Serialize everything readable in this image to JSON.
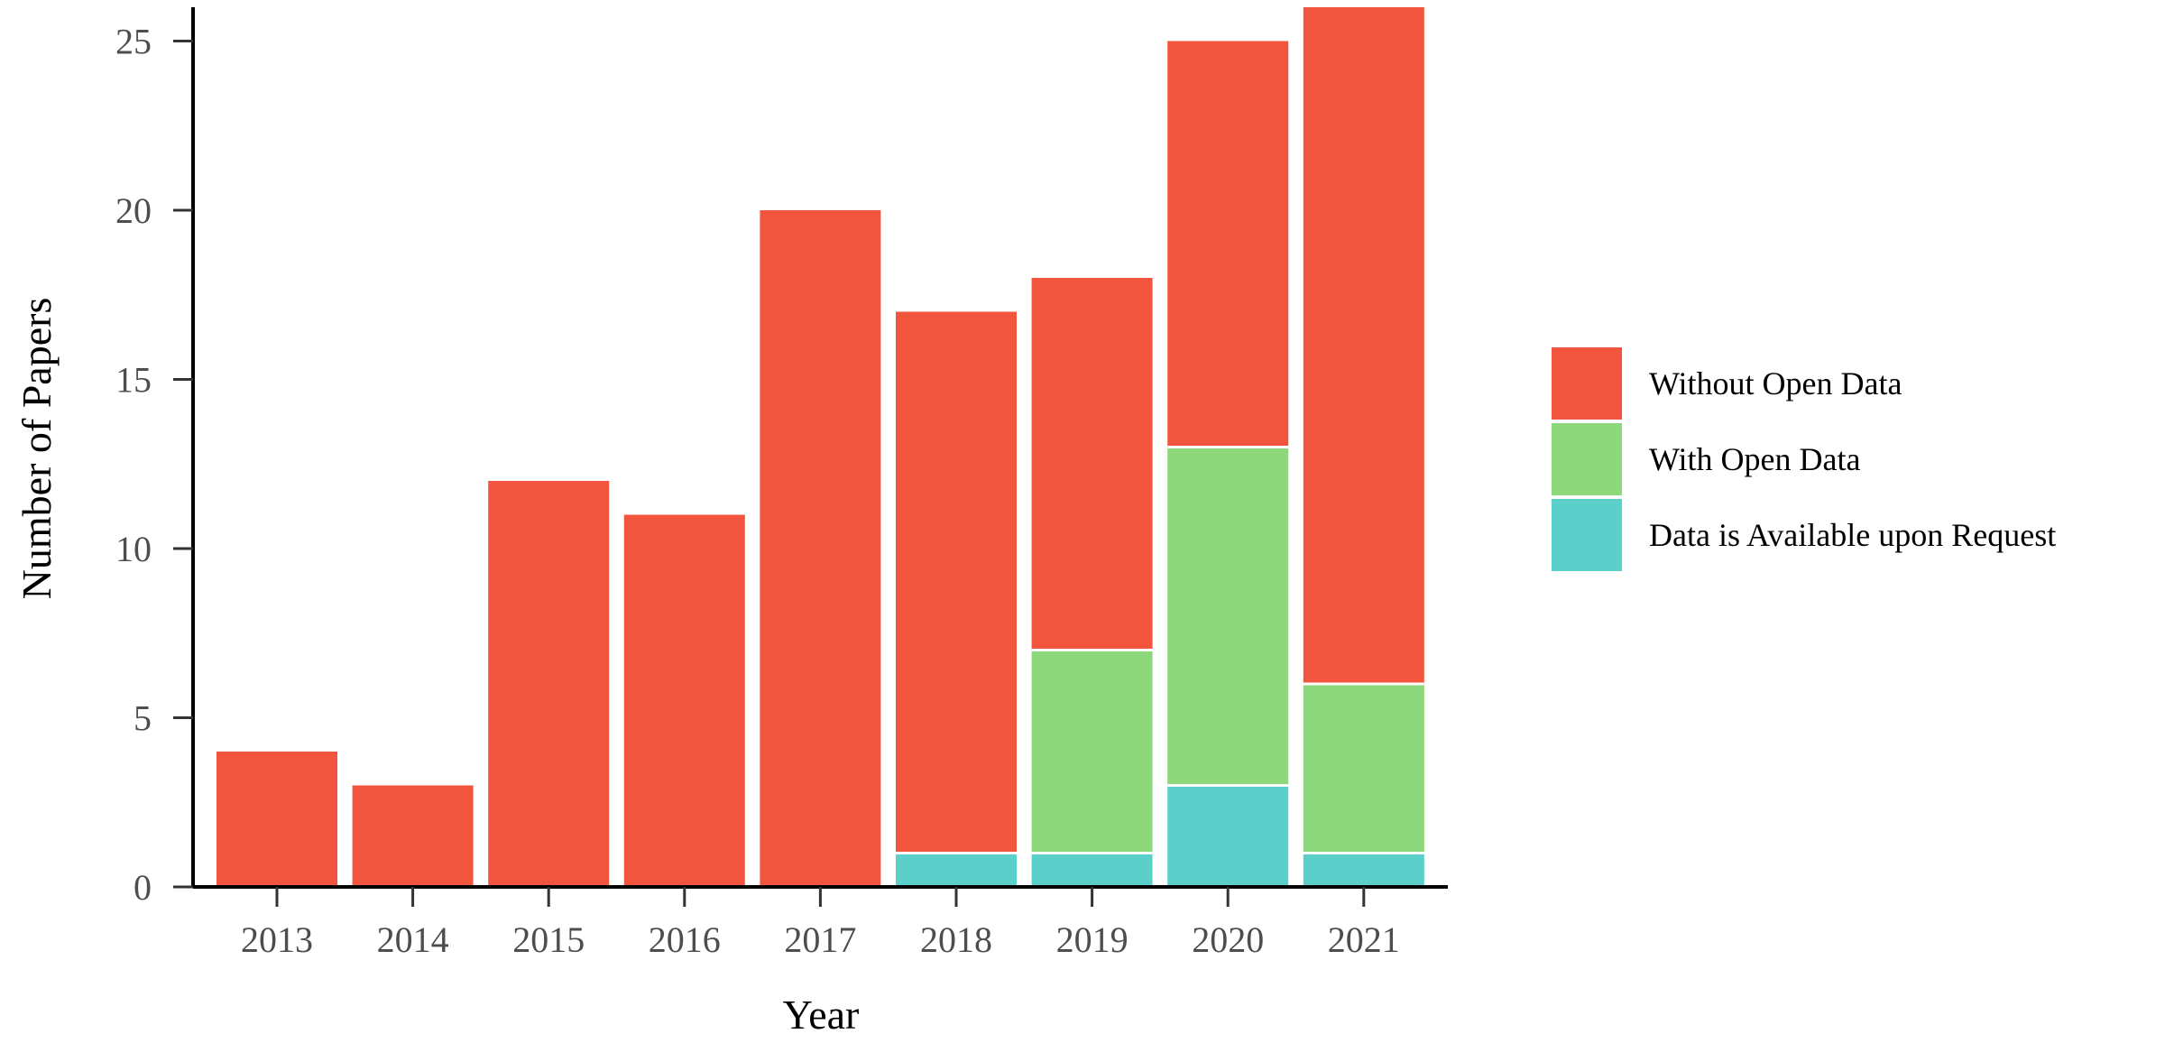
{
  "chart_data": {
    "type": "bar",
    "stacked": true,
    "xlabel": "Year",
    "ylabel": "Number of Papers",
    "categories": [
      "2013",
      "2014",
      "2015",
      "2016",
      "2017",
      "2018",
      "2019",
      "2020",
      "2021"
    ],
    "yticks": [
      0,
      5,
      10,
      15,
      20,
      25
    ],
    "ylim": [
      0,
      26
    ],
    "grid": false,
    "legend_position": "right",
    "series": [
      {
        "name": "Data is Available upon Request",
        "color": "#5bcfc9",
        "values": [
          0,
          0,
          0,
          0,
          0,
          1,
          1,
          3,
          1
        ]
      },
      {
        "name": "With Open Data",
        "color": "#8cd87a",
        "values": [
          0,
          0,
          0,
          0,
          0,
          0,
          6,
          10,
          5
        ]
      },
      {
        "name": "Without Open Data",
        "color": "#f2553d",
        "values": [
          4,
          3,
          12,
          11,
          20,
          16,
          11,
          12,
          20
        ]
      }
    ],
    "legend_order": [
      "Without Open Data",
      "With Open Data",
      "Data is Available upon Request"
    ]
  }
}
